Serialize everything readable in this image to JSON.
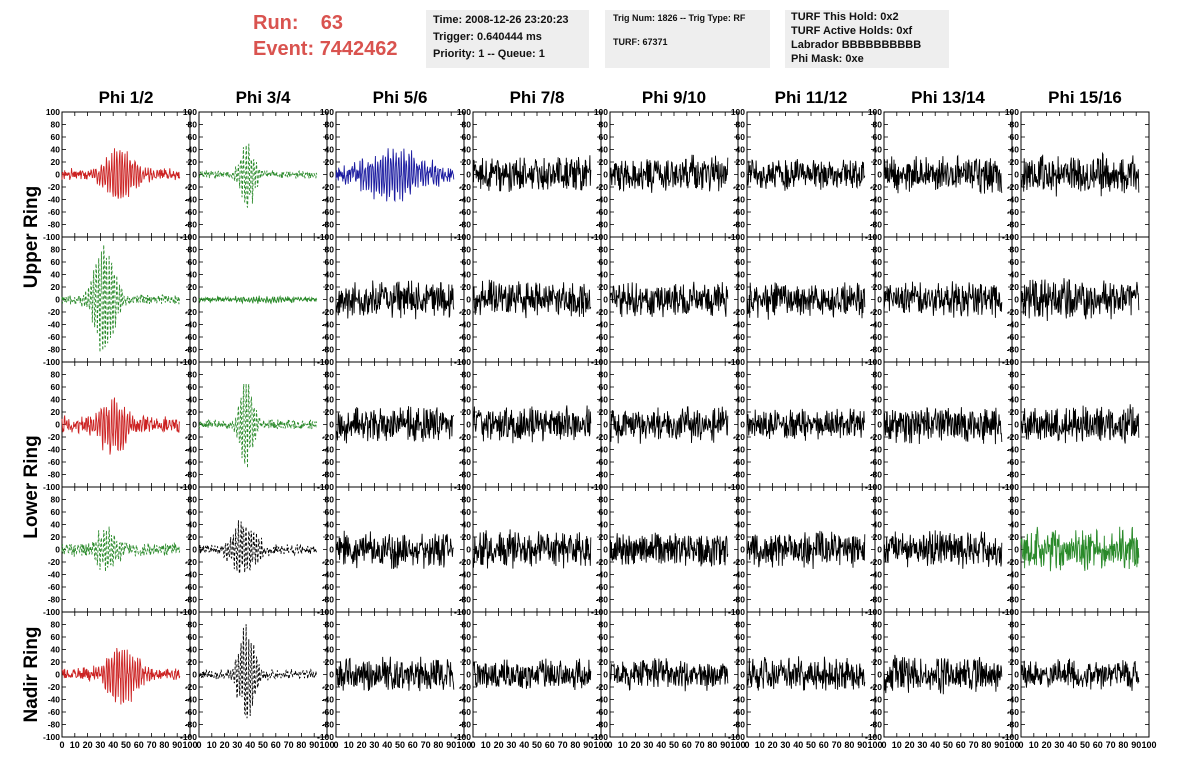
{
  "run_label": "Run:",
  "run_value": "63",
  "event_label": "Event:",
  "event_value": "7442462",
  "info_box_1": [
    "Time: 2008-12-26 23:20:23",
    "Trigger: 0.640444 ms",
    "Priority: 1 -- Queue: 1"
  ],
  "info_box_2": {
    "line1": "Trig Num: 1826 -- Trig Type: RF",
    "line2": "TURF: 67371"
  },
  "info_box_3": [
    "TURF This Hold: 0x2",
    "TURF Active Holds: 0xf",
    "Labrador BBBBBBBBBB",
    "Phi Mask: 0xe"
  ],
  "colors": {
    "run_text": "#d9534f",
    "trace_red": "#cc2222",
    "trace_green": "#2a8a2a",
    "trace_blue": "#1a1aa0",
    "trace_black": "#000000",
    "box_bg": "#eeeeee"
  },
  "chart_data": {
    "type": "line",
    "columns": [
      "Phi 1/2",
      "Phi 3/4",
      "Phi 5/6",
      "Phi 7/8",
      "Phi 9/10",
      "Phi 11/12",
      "Phi 13/14",
      "Phi 15/16"
    ],
    "ring_labels": [
      {
        "label": "Upper Ring",
        "rows": [
          0,
          1
        ]
      },
      {
        "label": "Lower Ring",
        "rows": [
          2,
          3
        ]
      },
      {
        "label": "Nadir Ring",
        "rows": [
          4
        ]
      }
    ],
    "xlim": [
      0,
      100
    ],
    "ylim": [
      -100,
      100
    ],
    "x_ticks": [
      0,
      10,
      20,
      30,
      40,
      50,
      60,
      70,
      80,
      90,
      100
    ],
    "x_tick_labels": [
      "0",
      "10",
      "20",
      "30",
      "40",
      "50",
      "60",
      "70",
      "80",
      "90",
      "100"
    ],
    "y_ticks": [
      100,
      80,
      60,
      40,
      20,
      0,
      -20,
      -40,
      -60,
      -80,
      -100
    ],
    "y_tick_labels": [
      "100",
      "80",
      "60",
      "40",
      "20",
      "0",
      "-20",
      "-40",
      "-60",
      "-80",
      "-100"
    ],
    "panels": [
      [
        {
          "color": "red",
          "dashed": false,
          "amp": 40,
          "center": 45,
          "width": 14,
          "noise": 7,
          "seed": 11
        },
        {
          "color": "green",
          "dashed": true,
          "amp": 55,
          "center": 38,
          "width": 7,
          "noise": 5,
          "seed": 12
        },
        {
          "color": "blue",
          "dashed": false,
          "amp": 35,
          "center": 45,
          "width": 28,
          "noise": 10,
          "seed": 13
        },
        {
          "color": "black",
          "dashed": false,
          "amp": 0,
          "center": 50,
          "width": 10,
          "noise": 22,
          "seed": 14
        },
        {
          "color": "black",
          "dashed": false,
          "amp": 0,
          "center": 50,
          "width": 10,
          "noise": 22,
          "seed": 15
        },
        {
          "color": "black",
          "dashed": false,
          "amp": 0,
          "center": 50,
          "width": 10,
          "noise": 18,
          "seed": 16
        },
        {
          "color": "black",
          "dashed": false,
          "amp": 0,
          "center": 50,
          "width": 10,
          "noise": 22,
          "seed": 17
        },
        {
          "color": "black",
          "dashed": false,
          "amp": 0,
          "center": 50,
          "width": 10,
          "noise": 24,
          "seed": 18
        }
      ],
      [
        {
          "color": "green",
          "dashed": true,
          "amp": 85,
          "center": 33,
          "width": 10,
          "noise": 6,
          "seed": 21
        },
        {
          "color": "green",
          "dashed": false,
          "amp": 3,
          "center": 50,
          "width": 30,
          "noise": 3,
          "seed": 22
        },
        {
          "color": "black",
          "dashed": false,
          "amp": 0,
          "center": 50,
          "width": 10,
          "noise": 22,
          "seed": 23
        },
        {
          "color": "black",
          "dashed": false,
          "amp": 0,
          "center": 50,
          "width": 10,
          "noise": 22,
          "seed": 24
        },
        {
          "color": "black",
          "dashed": false,
          "amp": 0,
          "center": 50,
          "width": 10,
          "noise": 20,
          "seed": 25
        },
        {
          "color": "black",
          "dashed": false,
          "amp": 0,
          "center": 50,
          "width": 10,
          "noise": 22,
          "seed": 26
        },
        {
          "color": "black",
          "dashed": false,
          "amp": 0,
          "center": 50,
          "width": 10,
          "noise": 22,
          "seed": 27
        },
        {
          "color": "black",
          "dashed": false,
          "amp": 0,
          "center": 50,
          "width": 10,
          "noise": 24,
          "seed": 28
        }
      ],
      [
        {
          "color": "red",
          "dashed": false,
          "amp": 40,
          "center": 40,
          "width": 14,
          "noise": 10,
          "seed": 31
        },
        {
          "color": "green",
          "dashed": true,
          "amp": 65,
          "center": 37,
          "width": 7,
          "noise": 6,
          "seed": 32
        },
        {
          "color": "black",
          "dashed": false,
          "amp": 0,
          "center": 50,
          "width": 10,
          "noise": 22,
          "seed": 33
        },
        {
          "color": "black",
          "dashed": false,
          "amp": 0,
          "center": 50,
          "width": 10,
          "noise": 22,
          "seed": 34
        },
        {
          "color": "black",
          "dashed": false,
          "amp": 0,
          "center": 50,
          "width": 10,
          "noise": 22,
          "seed": 35
        },
        {
          "color": "black",
          "dashed": false,
          "amp": 0,
          "center": 50,
          "width": 10,
          "noise": 18,
          "seed": 36
        },
        {
          "color": "black",
          "dashed": false,
          "amp": 0,
          "center": 50,
          "width": 10,
          "noise": 22,
          "seed": 37
        },
        {
          "color": "black",
          "dashed": false,
          "amp": 0,
          "center": 50,
          "width": 10,
          "noise": 22,
          "seed": 38
        }
      ],
      [
        {
          "color": "green",
          "dashed": true,
          "amp": 35,
          "center": 35,
          "width": 10,
          "noise": 8,
          "seed": 41
        },
        {
          "color": "black",
          "dashed": true,
          "amp": 45,
          "center": 35,
          "width": 12,
          "noise": 6,
          "seed": 42
        },
        {
          "color": "black",
          "dashed": false,
          "amp": 0,
          "center": 50,
          "width": 10,
          "noise": 22,
          "seed": 43
        },
        {
          "color": "black",
          "dashed": false,
          "amp": 0,
          "center": 50,
          "width": 10,
          "noise": 22,
          "seed": 44
        },
        {
          "color": "black",
          "dashed": false,
          "amp": 0,
          "center": 50,
          "width": 10,
          "noise": 20,
          "seed": 45
        },
        {
          "color": "black",
          "dashed": false,
          "amp": 0,
          "center": 50,
          "width": 10,
          "noise": 22,
          "seed": 46
        },
        {
          "color": "black",
          "dashed": false,
          "amp": 0,
          "center": 50,
          "width": 10,
          "noise": 22,
          "seed": 47
        },
        {
          "color": "green",
          "dashed": false,
          "amp": 0,
          "center": 50,
          "width": 10,
          "noise": 26,
          "seed": 48
        }
      ],
      [
        {
          "color": "red",
          "dashed": false,
          "amp": 45,
          "center": 48,
          "width": 14,
          "noise": 8,
          "seed": 51
        },
        {
          "color": "black",
          "dashed": true,
          "amp": 75,
          "center": 37,
          "width": 8,
          "noise": 6,
          "seed": 52
        },
        {
          "color": "black",
          "dashed": false,
          "amp": 0,
          "center": 50,
          "width": 10,
          "noise": 20,
          "seed": 53
        },
        {
          "color": "black",
          "dashed": false,
          "amp": 0,
          "center": 50,
          "width": 10,
          "noise": 18,
          "seed": 54
        },
        {
          "color": "black",
          "dashed": false,
          "amp": 0,
          "center": 50,
          "width": 10,
          "noise": 18,
          "seed": 55
        },
        {
          "color": "black",
          "dashed": false,
          "amp": 0,
          "center": 50,
          "width": 10,
          "noise": 20,
          "seed": 56
        },
        {
          "color": "black",
          "dashed": false,
          "amp": 0,
          "center": 50,
          "width": 10,
          "noise": 22,
          "seed": 57
        },
        {
          "color": "black",
          "dashed": false,
          "amp": 0,
          "center": 50,
          "width": 10,
          "noise": 18,
          "seed": 58
        }
      ]
    ]
  }
}
